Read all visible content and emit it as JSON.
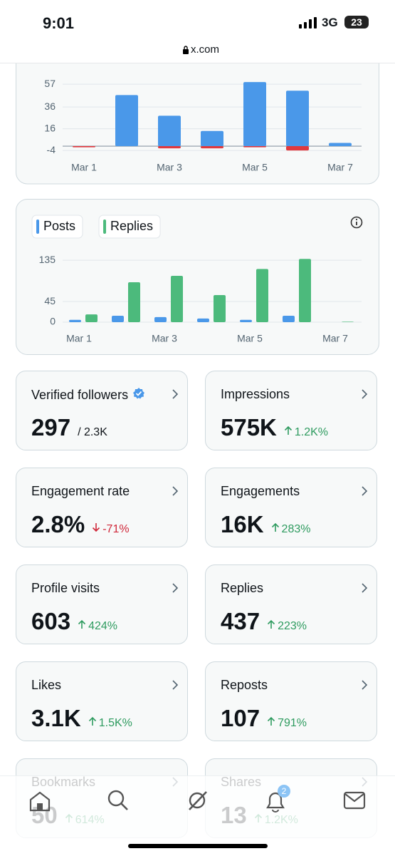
{
  "status_bar": {
    "time": "9:01",
    "network": "3G",
    "battery": "23",
    "url": "x.com"
  },
  "chart_data": [
    {
      "type": "bar",
      "stacked": true,
      "categories": [
        "Mar 1",
        null,
        "Mar 3",
        null,
        "Mar 5",
        null,
        "Mar 7"
      ],
      "series": [
        {
          "color": "#4a98e9",
          "values": [
            0,
            47,
            28,
            14,
            59,
            51,
            3
          ]
        },
        {
          "color": "#e0393e",
          "values": [
            -1,
            0,
            -2,
            -2,
            -1,
            -4,
            0
          ]
        }
      ],
      "ylim": [
        -6,
        62
      ],
      "yticks": [
        -4,
        16,
        36,
        57
      ],
      "grid": true
    },
    {
      "type": "bar",
      "stacked": false,
      "categories": [
        "Mar 1",
        null,
        "Mar 3",
        null,
        "Mar 5",
        null,
        "Mar 7"
      ],
      "series": [
        {
          "name": "Posts",
          "color": "#4a98e9",
          "values": [
            5,
            14,
            11,
            8,
            5,
            14,
            0
          ]
        },
        {
          "name": "Replies",
          "color": "#4cba7c",
          "values": [
            17,
            87,
            101,
            59,
            116,
            138,
            1
          ]
        }
      ],
      "ylim": [
        0,
        143
      ],
      "yticks": [
        0,
        45,
        135
      ],
      "grid": true
    }
  ],
  "cards": [
    {
      "title": "Verified followers",
      "value": "297",
      "detail": "/ 2.3K",
      "verified": true
    },
    {
      "title": "Impressions",
      "value": "575K",
      "change": "1.2K%",
      "trend": "up"
    },
    {
      "title": "Engagement rate",
      "value": "2.8%",
      "change": "-71%",
      "trend": "down"
    },
    {
      "title": "Engagements",
      "value": "16K",
      "change": "283%",
      "trend": "up"
    },
    {
      "title": "Profile visits",
      "value": "603",
      "change": "424%",
      "trend": "up"
    },
    {
      "title": "Replies",
      "value": "437",
      "change": "223%",
      "trend": "up"
    },
    {
      "title": "Likes",
      "value": "3.1K",
      "change": "1.5K%",
      "trend": "up"
    },
    {
      "title": "Reposts",
      "value": "107",
      "change": "791%",
      "trend": "up"
    },
    {
      "title": "Bookmarks",
      "value": "50",
      "change": "614%",
      "trend": "up"
    },
    {
      "title": "Shares",
      "value": "13",
      "change": "1.2K%",
      "trend": "up"
    }
  ],
  "nav": {
    "notification_count": "2"
  }
}
